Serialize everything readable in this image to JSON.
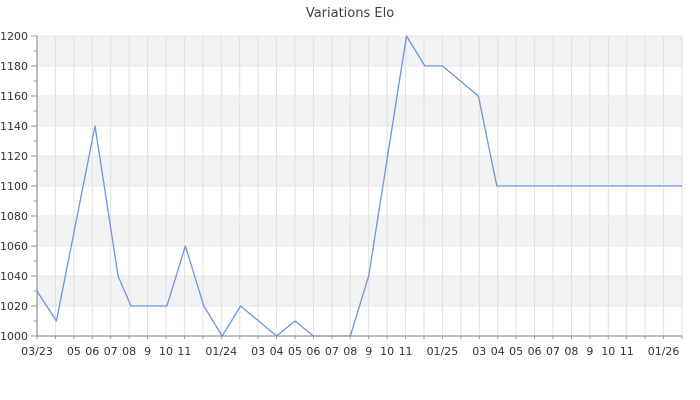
{
  "chart_data": {
    "type": "line",
    "title": "Variations Elo",
    "legend": "none",
    "x_axis": {
      "unit": "month",
      "range": [
        0,
        35
      ],
      "grid_every": 1,
      "ticks": [
        {
          "pos": 0,
          "label": "03/23"
        },
        {
          "pos": 2,
          "label": "05"
        },
        {
          "pos": 3,
          "label": "06"
        },
        {
          "pos": 4,
          "label": "07"
        },
        {
          "pos": 5,
          "label": "08"
        },
        {
          "pos": 6,
          "label": "9"
        },
        {
          "pos": 7,
          "label": "10"
        },
        {
          "pos": 8,
          "label": "11"
        },
        {
          "pos": 10,
          "label": "01/24"
        },
        {
          "pos": 12,
          "label": "03"
        },
        {
          "pos": 13,
          "label": "04"
        },
        {
          "pos": 14,
          "label": "05"
        },
        {
          "pos": 15,
          "label": "06"
        },
        {
          "pos": 16,
          "label": "07"
        },
        {
          "pos": 17,
          "label": "08"
        },
        {
          "pos": 18,
          "label": "9"
        },
        {
          "pos": 19,
          "label": "10"
        },
        {
          "pos": 20,
          "label": "11"
        },
        {
          "pos": 22,
          "label": "01/25"
        },
        {
          "pos": 24,
          "label": "03"
        },
        {
          "pos": 25,
          "label": "04"
        },
        {
          "pos": 26,
          "label": "05"
        },
        {
          "pos": 27,
          "label": "06"
        },
        {
          "pos": 28,
          "label": "07"
        },
        {
          "pos": 29,
          "label": "08"
        },
        {
          "pos": 30,
          "label": "9"
        },
        {
          "pos": 31,
          "label": "10"
        },
        {
          "pos": 32,
          "label": "11"
        },
        {
          "pos": 34,
          "label": "01/26"
        }
      ]
    },
    "y_axis": {
      "range": [
        1000,
        1200
      ],
      "tick_step": 20,
      "minor_tick_step": 10,
      "tick_labels": [
        "1000",
        "1020",
        "1040",
        "1060",
        "1080",
        "1100",
        "1120",
        "1140",
        "1160",
        "1180",
        "1200"
      ],
      "alternating_bands": true
    },
    "series": [
      {
        "color": "#6b96e3",
        "points": [
          [
            0,
            1030
          ],
          [
            1.05,
            1010
          ],
          [
            3.15,
            1140
          ],
          [
            4.4,
            1040
          ],
          [
            5.1,
            1020
          ],
          [
            7.05,
            1020
          ],
          [
            8.05,
            1060
          ],
          [
            9.05,
            1020
          ],
          [
            10.05,
            1000
          ],
          [
            11.05,
            1020
          ],
          [
            13,
            1000
          ],
          [
            14,
            1010
          ],
          [
            15,
            1000
          ],
          [
            17,
            1000
          ],
          [
            18,
            1040
          ],
          [
            20.05,
            1200
          ],
          [
            21.05,
            1180
          ],
          [
            22,
            1180
          ],
          [
            23.95,
            1160
          ],
          [
            24.95,
            1100
          ],
          [
            35,
            1100
          ]
        ]
      }
    ],
    "colors": {
      "line": "#6b96e3",
      "band": "#f2f2f2",
      "grid": "#e0e0e0",
      "band_edge": "#e8e8e8",
      "axis": "#808080",
      "tick": "#999999",
      "text": "#333333",
      "title": "#404040",
      "background": "#ffffff"
    }
  }
}
